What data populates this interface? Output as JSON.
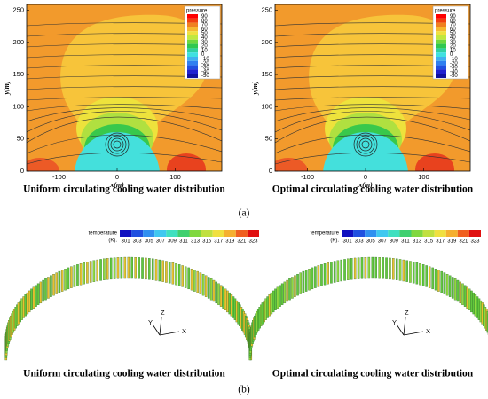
{
  "panel_a": {
    "label": "(a)",
    "plots": [
      {
        "caption": "Uniform circulating cooling water distribution",
        "x_label": "x(m)",
        "y_label": "y(m)",
        "xticks": [
          -100,
          0,
          100
        ],
        "yticks": [
          0,
          50,
          100,
          150,
          200,
          250
        ],
        "legend_title": "pressure",
        "legend_levels": [
          90,
          80,
          70,
          60,
          50,
          40,
          30,
          20,
          10,
          0,
          -10,
          -20,
          -30,
          -40,
          -50
        ]
      },
      {
        "caption": "Optimal circulating cooling water distribution",
        "x_label": "x(m)",
        "y_label": "y(m)",
        "xticks": [
          -100,
          0,
          100
        ],
        "yticks": [
          0,
          50,
          100,
          150,
          200,
          250
        ],
        "legend_title": "pressure",
        "legend_levels": [
          90,
          80,
          70,
          60,
          50,
          40,
          30,
          20,
          10,
          0,
          -10,
          -20,
          -30,
          -40,
          -50
        ]
      }
    ]
  },
  "panel_b": {
    "label": "(b)",
    "plots": [
      {
        "caption": "Uniform circulating cooling water distribution",
        "legend_title": "temperature",
        "legend_unit": "(K):",
        "legend_levels": [
          301,
          303,
          305,
          307,
          309,
          311,
          313,
          315,
          317,
          319,
          321,
          323
        ],
        "axes": [
          "X",
          "Y",
          "Z"
        ]
      },
      {
        "caption": "Optimal circulating cooling water distribution",
        "legend_title": "temperature",
        "legend_unit": "(K):",
        "legend_levels": [
          301,
          303,
          305,
          307,
          309,
          311,
          313,
          315,
          317,
          319,
          321,
          323
        ],
        "axes": [
          "X",
          "Y",
          "Z"
        ]
      }
    ]
  }
}
